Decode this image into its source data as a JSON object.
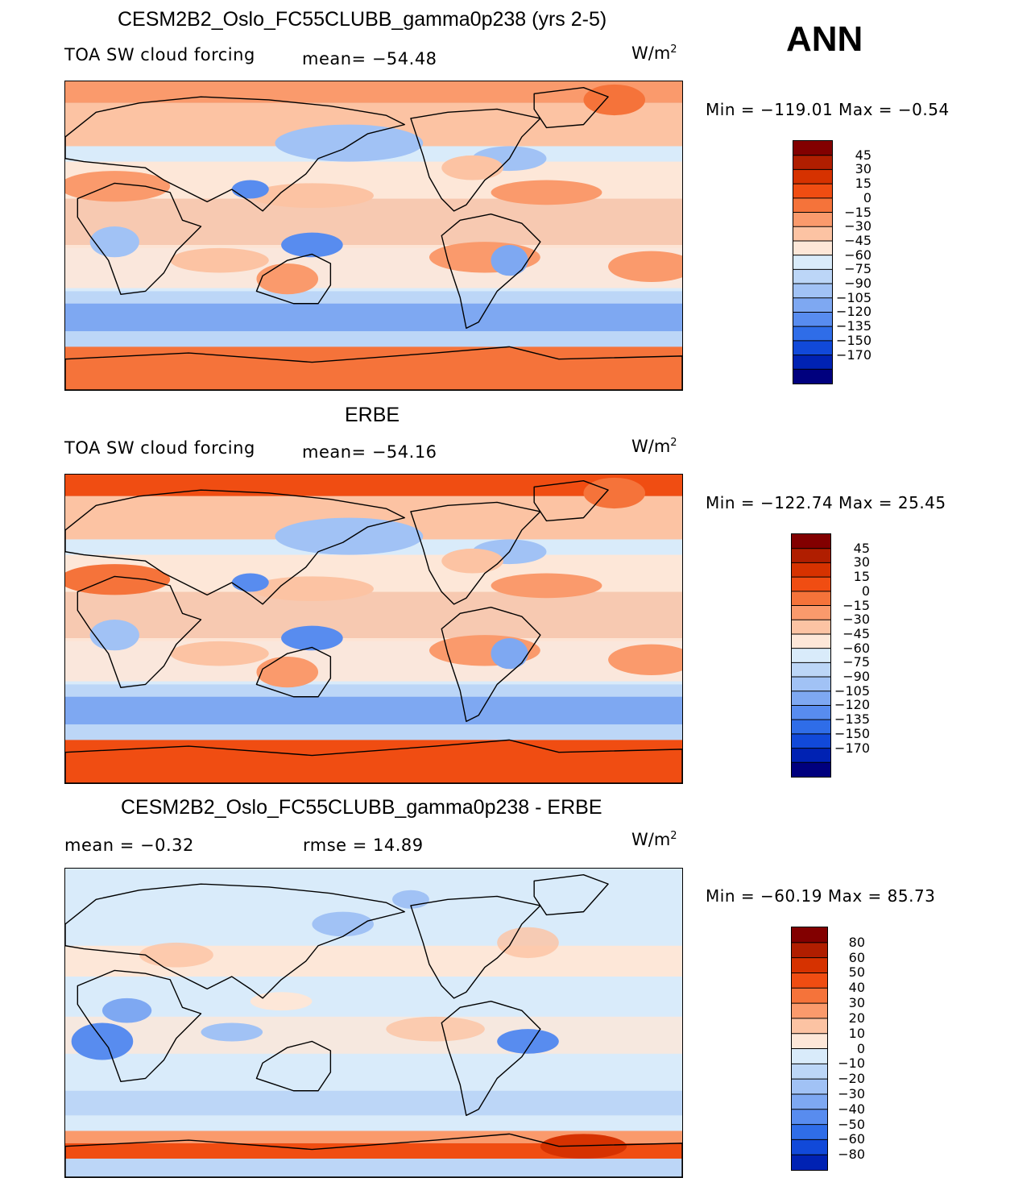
{
  "season": "ANN",
  "palettes": {
    "cloud": [
      "#820000",
      "#b01e00",
      "#d63200",
      "#f04d12",
      "#f5733a",
      "#fa9a6c",
      "#fcc3a3",
      "#fde7d8",
      "#d9ebfa",
      "#bcd6f7",
      "#a1c2f5",
      "#7ea8f2",
      "#588cef",
      "#2f6de8",
      "#1149d9",
      "#0022b3",
      "#00007e"
    ],
    "diff": [
      "#820000",
      "#b01e00",
      "#d63200",
      "#f04d12",
      "#f5733a",
      "#fa9a6c",
      "#fcc3a3",
      "#fde7d8",
      "#d9ebfa",
      "#bcd6f7",
      "#a1c2f5",
      "#7ea8f2",
      "#588cef",
      "#2f6de8",
      "#1149d9",
      "#0022b3"
    ]
  },
  "panels": [
    {
      "title": "CESM2B2_Oslo_FC55CLUBB_gamma0p238 (yrs 2-5)",
      "left_label": "TOA SW cloud forcing",
      "mid_label": "mean= −54.48",
      "units_base": "W/m",
      "units_exp": "2",
      "minmax": "Min = −119.01 Max =   −0.54",
      "colorbar_labels": [
        "45",
        "30",
        "15",
        "0",
        "−15",
        "−30",
        "−45",
        "−60",
        "−75",
        "−90",
        "−105",
        "−120",
        "−135",
        "−150",
        "−170"
      ],
      "palette": "cloud",
      "map_style": "model"
    },
    {
      "title": "ERBE",
      "left_label": "TOA SW cloud forcing",
      "mid_label": "mean= −54.16",
      "units_base": "W/m",
      "units_exp": "2",
      "minmax": "Min = −122.74 Max =   25.45",
      "colorbar_labels": [
        "45",
        "30",
        "15",
        "0",
        "−15",
        "−30",
        "−45",
        "−60",
        "−75",
        "−90",
        "−105",
        "−120",
        "−135",
        "−150",
        "−170"
      ],
      "palette": "cloud",
      "map_style": "obs"
    },
    {
      "title": "CESM2B2_Oslo_FC55CLUBB_gamma0p238 - ERBE",
      "left_label": "mean =   −0.32",
      "mid_label": "rmse =   14.89",
      "units_base": "W/m",
      "units_exp": "2",
      "minmax": "Min = −60.19 Max =   85.73",
      "colorbar_labels": [
        "80",
        "60",
        "50",
        "40",
        "30",
        "20",
        "10",
        "0",
        "−10",
        "−20",
        "−30",
        "−40",
        "−50",
        "−60",
        "−80"
      ],
      "palette": "diff",
      "map_style": "diff"
    }
  ]
}
